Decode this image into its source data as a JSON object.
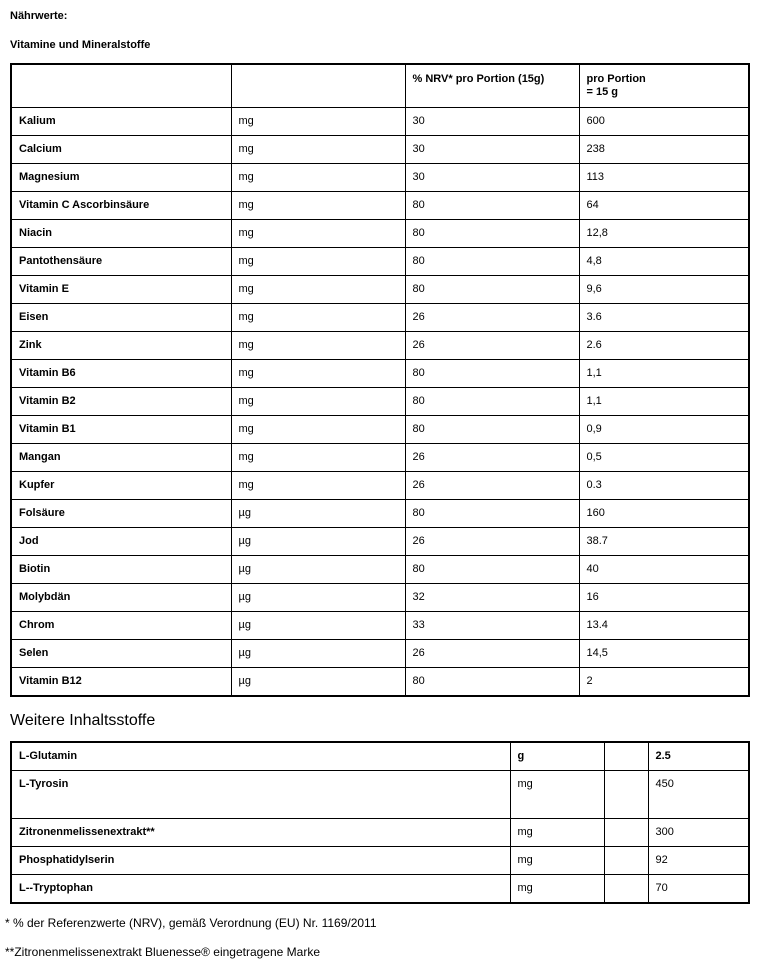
{
  "page": {
    "title_heading": "Nährwerte:",
    "section1_heading": "Vitamine und Mineralstoffe",
    "section2_heading": "Weitere Inhaltsstoffe",
    "footnote1": "* % der Referenzwerte (NRV), gemäß Verordnung (EU) Nr. 1169/2011",
    "footnote2": "**Zitronenmelissenextrakt Bluenesse® eingetragene Marke"
  },
  "vitamins_table": {
    "headers": {
      "col1": "",
      "col2": "",
      "col3": "% NRV* pro Portion (15g)",
      "col4_line1": "pro Portion",
      "col4_line2": "= 15 g"
    },
    "rows": [
      {
        "name": "Kalium",
        "unit": "mg",
        "nrv": "30",
        "amount": "600"
      },
      {
        "name": "Calcium",
        "unit": "mg",
        "nrv": "30",
        "amount": "238"
      },
      {
        "name": "Magnesium",
        "unit": "mg",
        "nrv": "30",
        "amount": "113"
      },
      {
        "name": "Vitamin C Ascorbinsäure",
        "unit": "mg",
        "nrv": "80",
        "amount": "64"
      },
      {
        "name": "Niacin",
        "unit": "mg",
        "nrv": "80",
        "amount": "12,8"
      },
      {
        "name": "Pantothensäure",
        "unit": "mg",
        "nrv": "80",
        "amount": "4,8"
      },
      {
        "name": "Vitamin E",
        "unit": "mg",
        "nrv": "80",
        "amount": "9,6"
      },
      {
        "name": "Eisen",
        "unit": "mg",
        "nrv": "26",
        "amount": "3.6"
      },
      {
        "name": "Zink",
        "unit": "mg",
        "nrv": "26",
        "amount": "2.6"
      },
      {
        "name": "Vitamin B6",
        "unit": "mg",
        "nrv": "80",
        "amount": "1,1"
      },
      {
        "name": "Vitamin B2",
        "unit": "mg",
        "nrv": "80",
        "amount": "1,1"
      },
      {
        "name": "Vitamin B1",
        "unit": "mg",
        "nrv": "80",
        "amount": "0,9"
      },
      {
        "name": "Mangan",
        "unit": "mg",
        "nrv": "26",
        "amount": "0,5"
      },
      {
        "name": "Kupfer",
        "unit": "mg",
        "nrv": "26",
        "amount": "0.3"
      },
      {
        "name": "Folsäure",
        "unit": "µg",
        "nrv": "80",
        "amount": "160"
      },
      {
        "name": "Jod",
        "unit": "µg",
        "nrv": "26",
        "amount": "38.7"
      },
      {
        "name": "Biotin",
        "unit": "µg",
        "nrv": "80",
        "amount": "40"
      },
      {
        "name": "Molybdän",
        "unit": "µg",
        "nrv": "32",
        "amount": "16"
      },
      {
        "name": "Chrom",
        "unit": "µg",
        "nrv": "33",
        "amount": "13.4"
      },
      {
        "name": "Selen",
        "unit": "µg",
        "nrv": "26",
        "amount": "14,5"
      },
      {
        "name": "Vitamin B12",
        "unit": "µg",
        "nrv": "80",
        "amount": "2"
      }
    ]
  },
  "other_table": {
    "rows": [
      {
        "name": "L-Glutamin",
        "unit": "g",
        "amount": "2.5",
        "bold": true,
        "tall": false
      },
      {
        "name": "L-Tyrosin",
        "unit": "mg",
        "amount": "450",
        "bold": false,
        "tall": true
      },
      {
        "name": "Zitronenmelissenextrakt**",
        "unit": "mg",
        "amount": "300",
        "bold": false,
        "tall": false
      },
      {
        "name": "Phosphatidylserin",
        "unit": "mg",
        "amount": "92",
        "bold": false,
        "tall": false
      },
      {
        "name": "L--Tryptophan",
        "unit": "mg",
        "amount": "70",
        "bold": false,
        "tall": false
      }
    ]
  }
}
